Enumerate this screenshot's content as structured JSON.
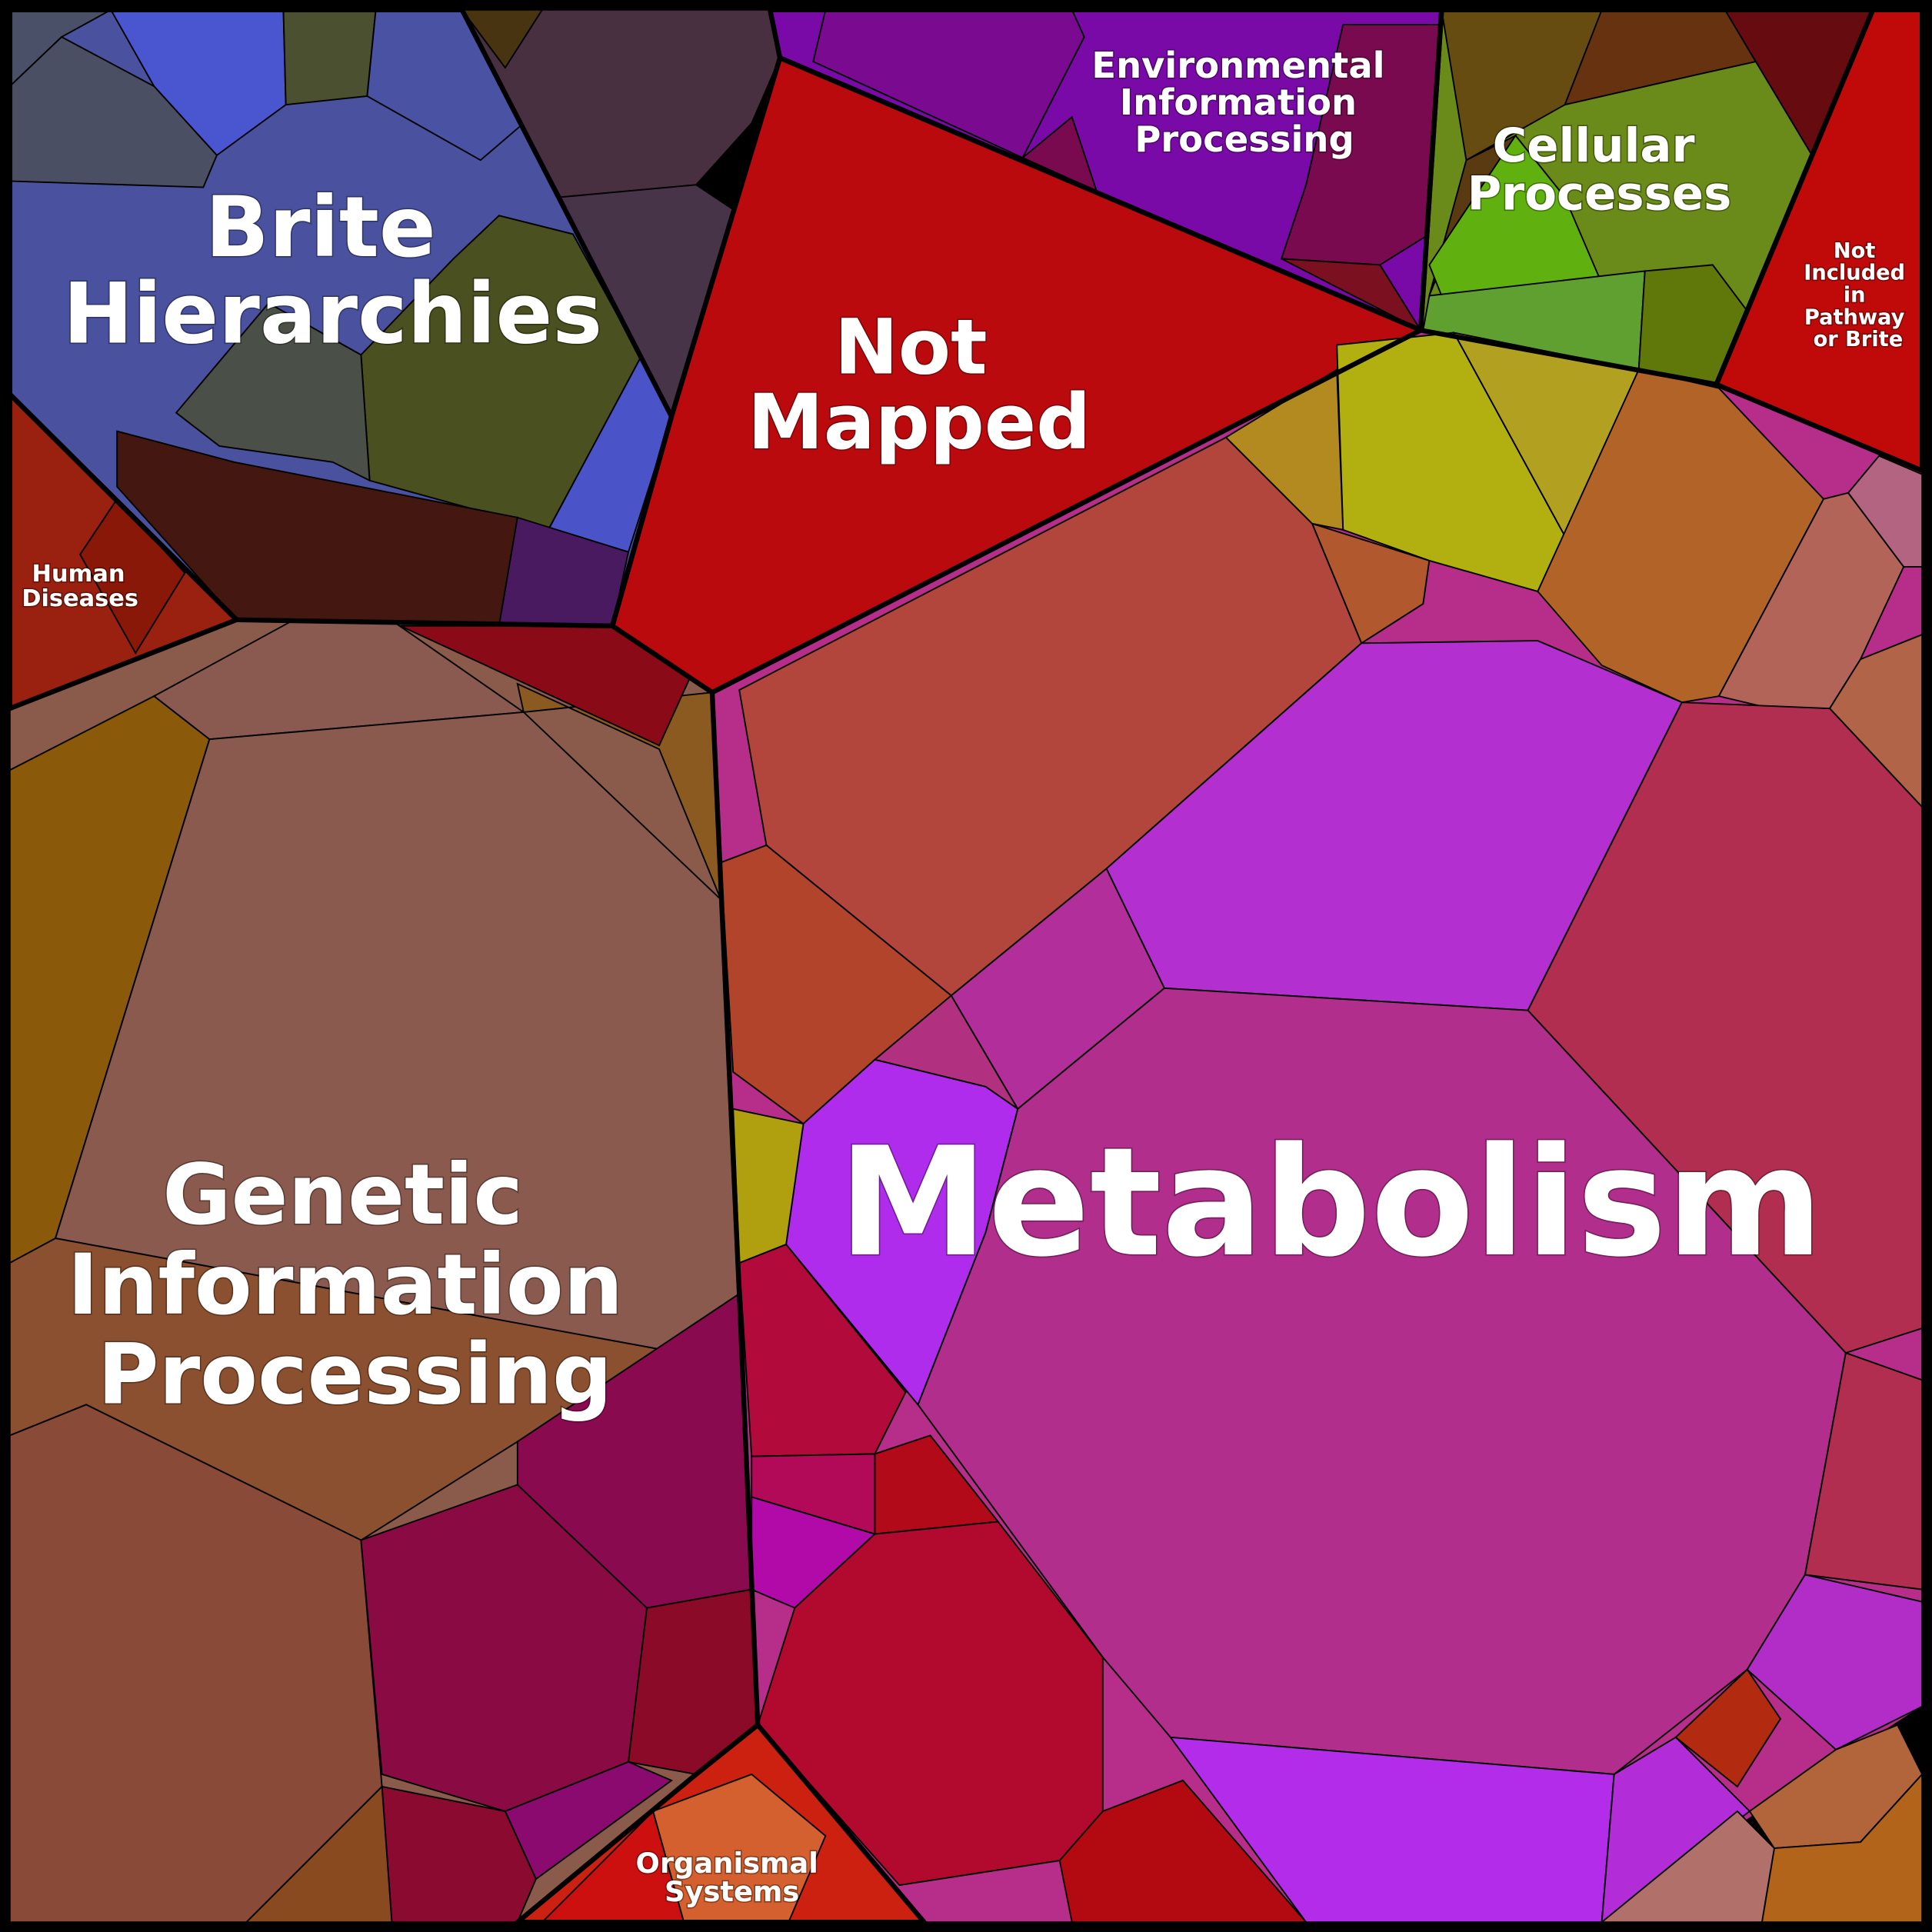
{
  "regions": [
    {
      "lines": [
        "Brite",
        "Hierarchies"
      ]
    },
    {
      "lines": [
        "Not",
        "Mapped"
      ]
    },
    {
      "lines": [
        "Environmental",
        "Information",
        "Processing"
      ]
    },
    {
      "lines": [
        "Cellular",
        "Processes"
      ]
    },
    {
      "lines": [
        "Not",
        "Included",
        "in",
        "Pathway",
        "or Brite"
      ]
    },
    {
      "lines": [
        "Human",
        "Diseases"
      ]
    },
    {
      "lines": [
        "Genetic",
        "Information",
        "Processing"
      ]
    },
    {
      "lines": [
        "Metabolism"
      ]
    },
    {
      "lines": [
        "Organismal",
        "Systems"
      ]
    }
  ]
}
